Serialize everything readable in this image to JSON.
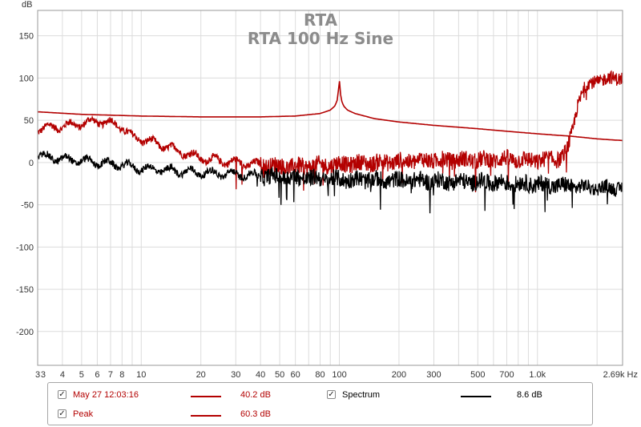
{
  "chart_data": {
    "type": "line",
    "title": "RTA",
    "subtitle": "RTA 100 Hz Sine",
    "ylabel": "dB",
    "x_unit": "Hz",
    "x_scale": "log",
    "xlim": [
      3,
      2690
    ],
    "ylim": [
      -240,
      180
    ],
    "grid": true,
    "x_ticks": [
      {
        "value": 3,
        "label": "3"
      },
      {
        "value": 3.2,
        "label": "3"
      },
      {
        "value": 4,
        "label": "4"
      },
      {
        "value": 5,
        "label": "5"
      },
      {
        "value": 6,
        "label": "6"
      },
      {
        "value": 7,
        "label": "7"
      },
      {
        "value": 8,
        "label": "8"
      },
      {
        "value": 10,
        "label": "10"
      },
      {
        "value": 20,
        "label": "20"
      },
      {
        "value": 30,
        "label": "30"
      },
      {
        "value": 40,
        "label": "40"
      },
      {
        "value": 50,
        "label": "50"
      },
      {
        "value": 60,
        "label": "60"
      },
      {
        "value": 80,
        "label": "80"
      },
      {
        "value": 100,
        "label": "100"
      },
      {
        "value": 200,
        "label": "200"
      },
      {
        "value": 300,
        "label": "300"
      },
      {
        "value": 500,
        "label": "500"
      },
      {
        "value": 700,
        "label": "700"
      },
      {
        "value": 1000,
        "label": "1.0k"
      },
      {
        "value": 2690,
        "label": "2.69k Hz"
      }
    ],
    "y_ticks": [
      150,
      100,
      50,
      0,
      -50,
      -100,
      -150,
      -200
    ],
    "series": [
      {
        "name": "May 27 12:03:16",
        "color": "#b30000",
        "style": "smooth",
        "x": [
          3,
          5,
          10,
          20,
          40,
          60,
          80,
          90,
          95,
          98,
          100,
          102,
          105,
          110,
          120,
          150,
          200,
          300,
          500,
          700,
          1000,
          1500,
          2000,
          2690
        ],
        "y": [
          60,
          57,
          55,
          54,
          54,
          55,
          58,
          62,
          67,
          75,
          98,
          75,
          67,
          62,
          58,
          52,
          48,
          44,
          40,
          37,
          34,
          31,
          28,
          26
        ]
      },
      {
        "name": "Peak",
        "color": "#b30000",
        "style": "noisy",
        "x": [
          3,
          4,
          5,
          6,
          7,
          8,
          9,
          10,
          15,
          20,
          30,
          40,
          60,
          100,
          200,
          300,
          500,
          700,
          1000,
          1300,
          1400,
          1500,
          1550,
          1600,
          1700,
          1800,
          2000,
          2300,
          2690
        ],
        "y": [
          40,
          43,
          46,
          49,
          47,
          42,
          30,
          28,
          15,
          5,
          0,
          -3,
          -5,
          -2,
          1,
          3,
          3,
          4,
          2,
          5,
          12,
          35,
          55,
          70,
          85,
          92,
          97,
          99,
          101
        ]
      },
      {
        "name": "Spectrum",
        "color": "#000000",
        "style": "noisy",
        "x": [
          3,
          4,
          5,
          6,
          8,
          10,
          15,
          20,
          30,
          40,
          60,
          100,
          200,
          300,
          500,
          700,
          1000,
          1500,
          2000,
          2690
        ],
        "y": [
          8,
          4,
          2,
          0,
          -3,
          -7,
          -10,
          -12,
          -14,
          -16,
          -18,
          -20,
          -21,
          -22,
          -23,
          -24,
          -26,
          -28,
          -30,
          -30
        ]
      }
    ]
  },
  "legend": {
    "rows": [
      [
        {
          "checked": true,
          "label": "May 27 12:03:16",
          "value": "40.2 dB",
          "color": "#b30000",
          "swatch": "#b30000"
        },
        {
          "checked": true,
          "label": "Spectrum",
          "value": "8.6 dB",
          "color": "#000000",
          "swatch": "#000000"
        }
      ],
      [
        {
          "checked": true,
          "label": "Peak",
          "value": "60.3 dB",
          "color": "#b30000",
          "swatch": "#b30000"
        }
      ]
    ],
    "check_glyph": "✓"
  }
}
